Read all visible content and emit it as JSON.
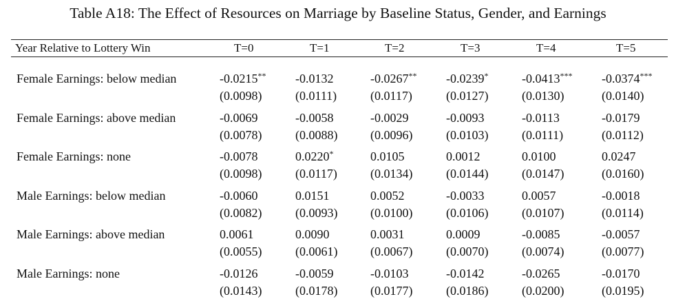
{
  "caption": "Table A18: The Effect of Resources on Marriage by Baseline Status, Gender, and Earnings",
  "header": {
    "row_label": "Year Relative to Lottery Win",
    "columns": [
      "T=0",
      "T=1",
      "T=2",
      "T=3",
      "T=4",
      "T=5"
    ]
  },
  "rows": [
    {
      "label": "Female Earnings: below median",
      "coef": [
        "-0.0215",
        "-0.0132",
        "-0.0267",
        "-0.0239",
        "-0.0413",
        "-0.0374"
      ],
      "stars": [
        "**",
        "",
        "**",
        "*",
        "***",
        "***"
      ],
      "se": [
        "(0.0098)",
        "(0.0111)",
        "(0.0117)",
        "(0.0127)",
        "(0.0130)",
        "(0.0140)"
      ]
    },
    {
      "label": "Female Earnings: above median",
      "coef": [
        "-0.0069",
        "-0.0058",
        "-0.0029",
        "-0.0093",
        "-0.0113",
        "-0.0179"
      ],
      "stars": [
        "",
        "",
        "",
        "",
        "",
        ""
      ],
      "se": [
        "(0.0078)",
        "(0.0088)",
        "(0.0096)",
        "(0.0103)",
        "(0.0111)",
        "(0.0112)"
      ]
    },
    {
      "label": "Female Earnings: none",
      "coef": [
        "-0.0078",
        "0.0220",
        "0.0105",
        "0.0012",
        "0.0100",
        "0.0247"
      ],
      "stars": [
        "",
        "*",
        "",
        "",
        "",
        ""
      ],
      "se": [
        "(0.0098)",
        "(0.0117)",
        "(0.0134)",
        "(0.0144)",
        "(0.0147)",
        "(0.0160)"
      ]
    },
    {
      "label": "Male Earnings: below median",
      "coef": [
        "-0.0060",
        "0.0151",
        "0.0052",
        "-0.0033",
        "0.0057",
        "-0.0018"
      ],
      "stars": [
        "",
        "",
        "",
        "",
        "",
        ""
      ],
      "se": [
        "(0.0082)",
        "(0.0093)",
        "(0.0100)",
        "(0.0106)",
        "(0.0107)",
        "(0.0114)"
      ]
    },
    {
      "label": "Male Earnings: above median",
      "coef": [
        "0.0061",
        "0.0090",
        "0.0031",
        "0.0009",
        "-0.0085",
        "-0.0057"
      ],
      "stars": [
        "",
        "",
        "",
        "",
        "",
        ""
      ],
      "se": [
        "(0.0055)",
        "(0.0061)",
        "(0.0067)",
        "(0.0070)",
        "(0.0074)",
        "(0.0077)"
      ]
    },
    {
      "label": "Male Earnings: none",
      "coef": [
        "-0.0126",
        "-0.0059",
        "-0.0103",
        "-0.0142",
        "-0.0265",
        "-0.0170"
      ],
      "stars": [
        "",
        "",
        "",
        "",
        "",
        ""
      ],
      "se": [
        "(0.0143)",
        "(0.0178)",
        "(0.0177)",
        "(0.0186)",
        "(0.0200)",
        "(0.0195)"
      ]
    }
  ]
}
